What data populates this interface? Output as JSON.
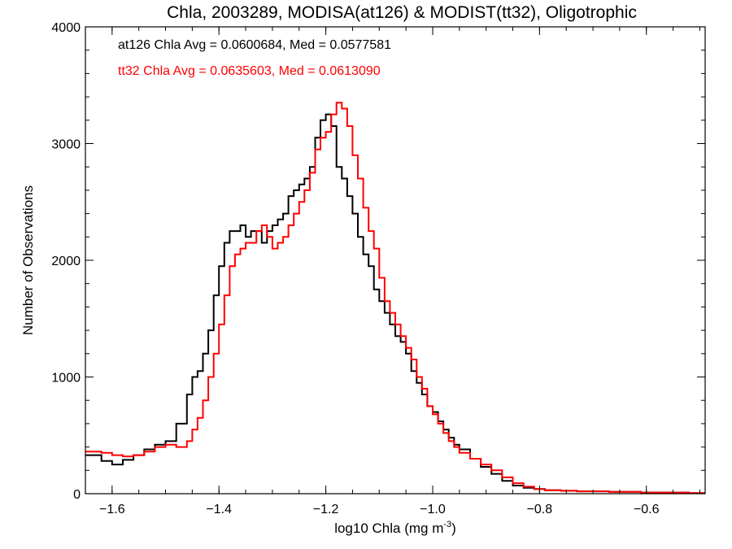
{
  "chart_data": {
    "type": "line",
    "title": "Chla, 2003289, MODISA(at126) & MODIST(tt32), Oligotrophic",
    "xlabel": "log10 Chla (mg m",
    "xlabel_sup": "-3",
    "xlabel_end": ")",
    "ylabel": "Number of Observations",
    "xlim": [
      -1.65,
      -0.49
    ],
    "ylim": [
      0,
      4000
    ],
    "x_ticks": [
      -1.6,
      -1.4,
      -1.2,
      -1.0,
      -0.8,
      -0.6
    ],
    "x_tick_labels": [
      "−1.6",
      "−1.4",
      "−1.2",
      "−1.0",
      "−0.8",
      "−0.6"
    ],
    "y_ticks": [
      0,
      1000,
      2000,
      3000,
      4000
    ],
    "y_tick_labels": [
      "0",
      "1000",
      "2000",
      "3000",
      "4000"
    ],
    "grid": false,
    "annotations": [
      {
        "text": "at126 Chla Avg = 0.0600684, Med = 0.0577581",
        "color": "#000000"
      },
      {
        "text": "tt32 Chla Avg = 0.0635603, Med = 0.0613090",
        "color": "#ff0000"
      }
    ],
    "series": [
      {
        "color": "#000000",
        "x": [
          -1.65,
          -1.62,
          -1.6,
          -1.58,
          -1.56,
          -1.54,
          -1.52,
          -1.5,
          -1.48,
          -1.46,
          -1.45,
          -1.44,
          -1.43,
          -1.42,
          -1.41,
          -1.4,
          -1.39,
          -1.38,
          -1.37,
          -1.36,
          -1.35,
          -1.34,
          -1.33,
          -1.32,
          -1.31,
          -1.3,
          -1.29,
          -1.28,
          -1.27,
          -1.26,
          -1.25,
          -1.24,
          -1.23,
          -1.22,
          -1.21,
          -1.2,
          -1.19,
          -1.18,
          -1.17,
          -1.16,
          -1.15,
          -1.14,
          -1.13,
          -1.12,
          -1.11,
          -1.1,
          -1.09,
          -1.08,
          -1.07,
          -1.06,
          -1.05,
          -1.04,
          -1.03,
          -1.02,
          -1.01,
          -1.0,
          -0.99,
          -0.98,
          -0.97,
          -0.96,
          -0.95,
          -0.93,
          -0.91,
          -0.89,
          -0.87,
          -0.85,
          -0.83,
          -0.81,
          -0.79,
          -0.76,
          -0.73,
          -0.7,
          -0.67,
          -0.64,
          -0.61,
          -0.58,
          -0.55,
          -0.52,
          -0.49
        ],
        "y": [
          330,
          280,
          250,
          290,
          330,
          380,
          420,
          450,
          600,
          850,
          1000,
          1050,
          1200,
          1400,
          1700,
          1950,
          2150,
          2250,
          2250,
          2300,
          2200,
          2250,
          2250,
          2150,
          2250,
          2300,
          2350,
          2400,
          2550,
          2600,
          2650,
          2700,
          2800,
          3050,
          3200,
          3250,
          3150,
          2800,
          2700,
          2550,
          2400,
          2200,
          2050,
          1950,
          1750,
          1650,
          1550,
          1450,
          1350,
          1300,
          1200,
          1050,
          950,
          850,
          750,
          700,
          620,
          550,
          480,
          420,
          380,
          300,
          230,
          170,
          110,
          70,
          50,
          40,
          30,
          25,
          20,
          20,
          15,
          15,
          10,
          10,
          10,
          5,
          5
        ]
      },
      {
        "color": "#ff0000",
        "x": [
          -1.65,
          -1.62,
          -1.6,
          -1.58,
          -1.56,
          -1.54,
          -1.52,
          -1.5,
          -1.48,
          -1.46,
          -1.45,
          -1.44,
          -1.43,
          -1.42,
          -1.41,
          -1.4,
          -1.39,
          -1.38,
          -1.37,
          -1.36,
          -1.35,
          -1.34,
          -1.33,
          -1.32,
          -1.31,
          -1.3,
          -1.29,
          -1.28,
          -1.27,
          -1.26,
          -1.25,
          -1.24,
          -1.23,
          -1.22,
          -1.21,
          -1.2,
          -1.19,
          -1.18,
          -1.17,
          -1.16,
          -1.15,
          -1.14,
          -1.13,
          -1.12,
          -1.11,
          -1.1,
          -1.09,
          -1.08,
          -1.07,
          -1.06,
          -1.05,
          -1.04,
          -1.03,
          -1.02,
          -1.01,
          -1.0,
          -0.99,
          -0.98,
          -0.97,
          -0.96,
          -0.95,
          -0.93,
          -0.91,
          -0.89,
          -0.87,
          -0.85,
          -0.83,
          -0.81,
          -0.79,
          -0.76,
          -0.73,
          -0.7,
          -0.67,
          -0.64,
          -0.61,
          -0.58,
          -0.55,
          -0.52,
          -0.49
        ],
        "y": [
          360,
          350,
          330,
          320,
          330,
          360,
          400,
          420,
          400,
          450,
          550,
          650,
          800,
          1000,
          1200,
          1450,
          1700,
          1950,
          2050,
          2100,
          2150,
          2150,
          2250,
          2300,
          2200,
          2100,
          2150,
          2200,
          2300,
          2400,
          2500,
          2600,
          2750,
          2950,
          3050,
          3100,
          3250,
          3350,
          3300,
          3150,
          2900,
          2700,
          2450,
          2250,
          2100,
          1850,
          1650,
          1550,
          1450,
          1350,
          1250,
          1150,
          1000,
          900,
          750,
          680,
          600,
          520,
          450,
          400,
          350,
          300,
          250,
          200,
          140,
          90,
          60,
          40,
          30,
          25,
          20,
          20,
          15,
          15,
          10,
          10,
          10,
          5,
          5
        ]
      }
    ]
  }
}
